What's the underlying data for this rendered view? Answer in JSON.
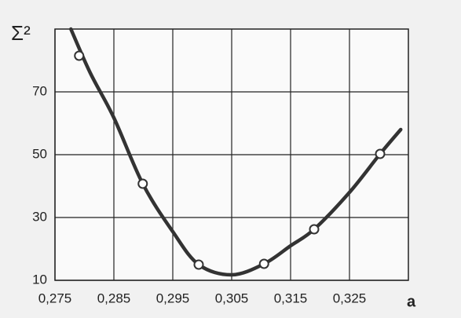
{
  "chart_data": {
    "type": "line",
    "ylabel": "Σ²",
    "xlabel": "a",
    "xlim": [
      0.275,
      0.335
    ],
    "ylim": [
      10,
      90
    ],
    "xticks": [
      {
        "value": 0.275,
        "label": "0,275"
      },
      {
        "value": 0.285,
        "label": "0,285"
      },
      {
        "value": 0.295,
        "label": "0,295"
      },
      {
        "value": 0.305,
        "label": "0,305"
      },
      {
        "value": 0.315,
        "label": "0,315"
      },
      {
        "value": 0.325,
        "label": "0,325"
      }
    ],
    "yticks": [
      10,
      30,
      50,
      70
    ],
    "grid": true,
    "series": [
      {
        "color": "#333333",
        "marker": false,
        "x": [
          0.2777,
          0.281,
          0.285,
          0.2899,
          0.295,
          0.2994,
          0.305,
          0.3105,
          0.315,
          0.319,
          0.325,
          0.3302,
          0.3337
        ],
        "values": [
          90,
          76,
          61.75,
          40.75,
          25.5,
          15,
          11.75,
          15.25,
          21,
          26.25,
          38,
          50.25,
          58
        ]
      },
      {
        "color": "#333333",
        "marker": true,
        "x": [
          0.2791,
          0.2899,
          0.2994,
          0.3105,
          0.319,
          0.3302
        ],
        "values": [
          81.5,
          40.75,
          15,
          15.25,
          26.25,
          50.25
        ]
      }
    ]
  }
}
